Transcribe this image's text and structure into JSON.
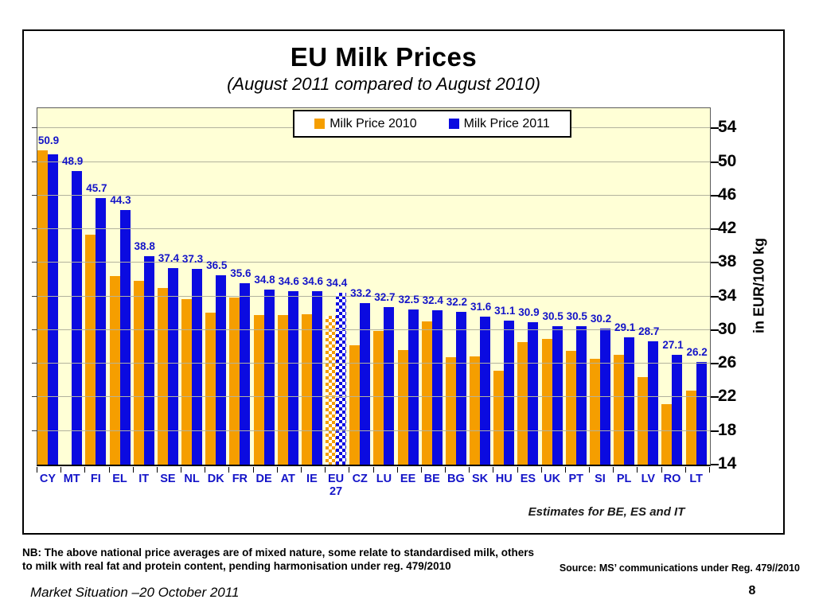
{
  "slide": {
    "nb_line1": "NB: The above national price averages are of mixed nature, some relate to standardised milk, others",
    "nb_line2": "to milk with real fat and protein content, pending harmonisation under reg. 479/2010",
    "source": "Source: MS’ communications under Reg. 479//2010",
    "footer_left": "Market Situation –20 October 2011",
    "page_number": "8"
  },
  "chart_data": {
    "type": "bar",
    "title": "EU Milk Prices",
    "subtitle": "(August 2011 compared to August 2010)",
    "ylabel": "in EUR/100 kg",
    "ylim": [
      14,
      56.4
    ],
    "yticks": [
      14,
      18,
      22,
      26,
      30,
      34,
      38,
      42,
      46,
      50,
      54
    ],
    "grid": true,
    "legend_position": "top-center",
    "annotation": "Estimates for BE, ES and IT",
    "plot_background": "#FFFFD6",
    "value_label_color": "#1414C8",
    "categories": [
      "CY",
      "MT",
      "FI",
      "EL",
      "IT",
      "SE",
      "NL",
      "DK",
      "FR",
      "DE",
      "AT",
      "IE",
      "EU 27",
      "CZ",
      "LU",
      "EE",
      "BE",
      "BG",
      "SK",
      "HU",
      "ES",
      "UK",
      "PT",
      "SI",
      "PL",
      "LV",
      "RO",
      "LT"
    ],
    "pattern_bar_category": "EU 27",
    "series": [
      {
        "name": "Milk Price 2010",
        "color": "#F59E00",
        "estimated_from_bar_heights": true,
        "values": [
          51.4,
          null,
          41.4,
          36.4,
          35.9,
          35.0,
          33.7,
          32.1,
          33.9,
          31.8,
          31.8,
          31.9,
          31.7,
          28.2,
          29.9,
          27.6,
          31.0,
          26.8,
          26.9,
          25.2,
          28.6,
          29.0,
          27.5,
          26.6,
          27.1,
          24.4,
          21.2,
          22.8
        ]
      },
      {
        "name": "Milk Price 2011",
        "color": "#0B0BE0",
        "labels_shown": true,
        "values": [
          50.9,
          48.9,
          45.7,
          44.3,
          38.8,
          37.4,
          37.3,
          36.5,
          35.6,
          34.8,
          34.6,
          34.6,
          34.4,
          33.2,
          32.7,
          32.5,
          32.4,
          32.2,
          31.6,
          31.1,
          30.9,
          30.5,
          30.5,
          30.2,
          29.1,
          28.7,
          27.1,
          26.2
        ]
      }
    ]
  }
}
